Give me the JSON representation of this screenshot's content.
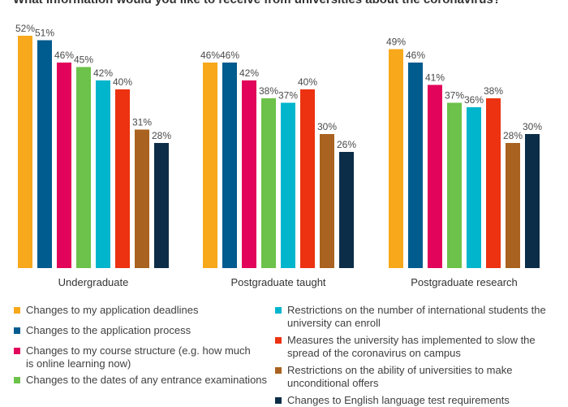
{
  "chart_data": {
    "type": "bar",
    "title": "What information would you like to receive from universities about the coronavirus?",
    "categories": [
      "Undergraduate",
      "Postgraduate taught",
      "Postgraduate research"
    ],
    "series": [
      {
        "name": "Changes to my application deadlines",
        "color": "#f7a81b",
        "values": [
          52,
          46,
          49
        ]
      },
      {
        "name": "Changes to the application process",
        "color": "#005b8e",
        "values": [
          51,
          46,
          46
        ]
      },
      {
        "name": "Changes to my course structure (e.g. how much is online learning now)",
        "color": "#e2045a",
        "values": [
          46,
          42,
          41
        ]
      },
      {
        "name": "Changes to the dates of any entrance examinations",
        "color": "#6cc24a",
        "values": [
          45,
          38,
          37
        ]
      },
      {
        "name": "Restrictions on the number of international students the university can enroll",
        "color": "#00b5cc",
        "values": [
          42,
          37,
          36
        ]
      },
      {
        "name": "Measures the university has implemented to slow the spread of the coronavirus on campus",
        "color": "#ec3210",
        "values": [
          40,
          40,
          38
        ]
      },
      {
        "name": "Restrictions on the ability of universities to make unconditional offers",
        "color": "#a9621f",
        "values": [
          31,
          30,
          28
        ]
      },
      {
        "name": "Changes to English language test requirements",
        "color": "#0b2d48",
        "values": [
          28,
          26,
          30
        ]
      }
    ],
    "value_suffix": "%",
    "ylim": [
      0,
      55
    ],
    "grid": false,
    "legend_position": "bottom"
  }
}
